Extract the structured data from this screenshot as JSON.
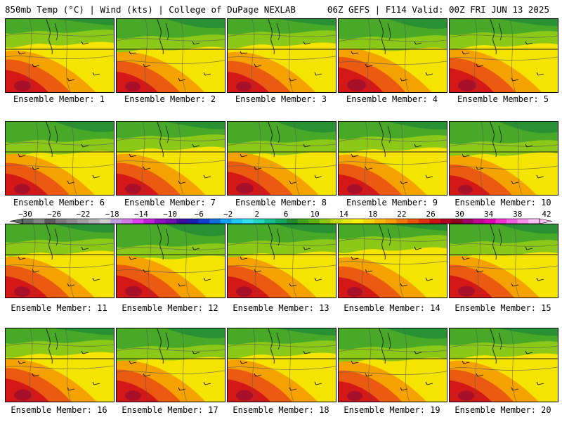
{
  "header": {
    "left": "850mb Temp (°C) | Wind (kts) | College of DuPage NEXLAB",
    "right": "06Z GEFS | F114 Valid: 00Z FRI JUN 13 2025"
  },
  "members": [
    {
      "label": "Ensemble Member: 1",
      "warm": 0.6
    },
    {
      "label": "Ensemble Member: 2",
      "warm": 0.5
    },
    {
      "label": "Ensemble Member: 3",
      "warm": 0.5
    },
    {
      "label": "Ensemble Member: 4",
      "warm": 0.75
    },
    {
      "label": "Ensemble Member: 5",
      "warm": 0.7
    },
    {
      "label": "Ensemble Member: 6",
      "warm": 0.55
    },
    {
      "label": "Ensemble Member: 7",
      "warm": 0.55
    },
    {
      "label": "Ensemble Member: 8",
      "warm": 0.65
    },
    {
      "label": "Ensemble Member: 9",
      "warm": 0.5
    },
    {
      "label": "Ensemble Member: 10",
      "warm": 0.45
    },
    {
      "label": "Ensemble Member: 11",
      "warm": 0.55
    },
    {
      "label": "Ensemble Member: 12",
      "warm": 0.6
    },
    {
      "label": "Ensemble Member: 13",
      "warm": 0.55
    },
    {
      "label": "Ensemble Member: 14",
      "warm": 0.5
    },
    {
      "label": "Ensemble Member: 15",
      "warm": 0.6
    },
    {
      "label": "Ensemble Member: 16",
      "warm": 0.65
    },
    {
      "label": "Ensemble Member: 17",
      "warm": 0.55
    },
    {
      "label": "Ensemble Member: 18",
      "warm": 0.6
    },
    {
      "label": "Ensemble Member: 19",
      "warm": 0.5
    },
    {
      "label": "Ensemble Member: 20",
      "warm": 0.55
    }
  ],
  "colorbar": {
    "ticks": [
      "−30",
      "−26",
      "−22",
      "−18",
      "−14",
      "−10",
      "−6",
      "−2",
      "2",
      "6",
      "10",
      "14",
      "18",
      "22",
      "26",
      "30",
      "34",
      "38",
      "42"
    ],
    "colors": [
      "#5e6e64",
      "#7e8a82",
      "#5a5a5a",
      "#7a7a7a",
      "#8c8c8c",
      "#a0a0a0",
      "#b4b4b4",
      "#cdcdcd",
      "#bfa0e0",
      "#d27ae8",
      "#e040f0",
      "#c020d8",
      "#9010c0",
      "#7010b0",
      "#3a10a0",
      "#1a20b0",
      "#1040d0",
      "#1070e0",
      "#10a0f0",
      "#20c8f8",
      "#30e0e8",
      "#20d8c0",
      "#10c090",
      "#10a860",
      "#208c30",
      "#40a020",
      "#60b010",
      "#90c810",
      "#c0dc10",
      "#e8e810",
      "#f8f000",
      "#f8d400",
      "#f8b800",
      "#f89c00",
      "#f07800",
      "#e85400",
      "#e03010",
      "#d01010",
      "#b00020",
      "#900020",
      "#a00060",
      "#c00090",
      "#e000b0",
      "#f030d0",
      "#f060e0",
      "#f890ec",
      "#fcc0f4"
    ]
  }
}
